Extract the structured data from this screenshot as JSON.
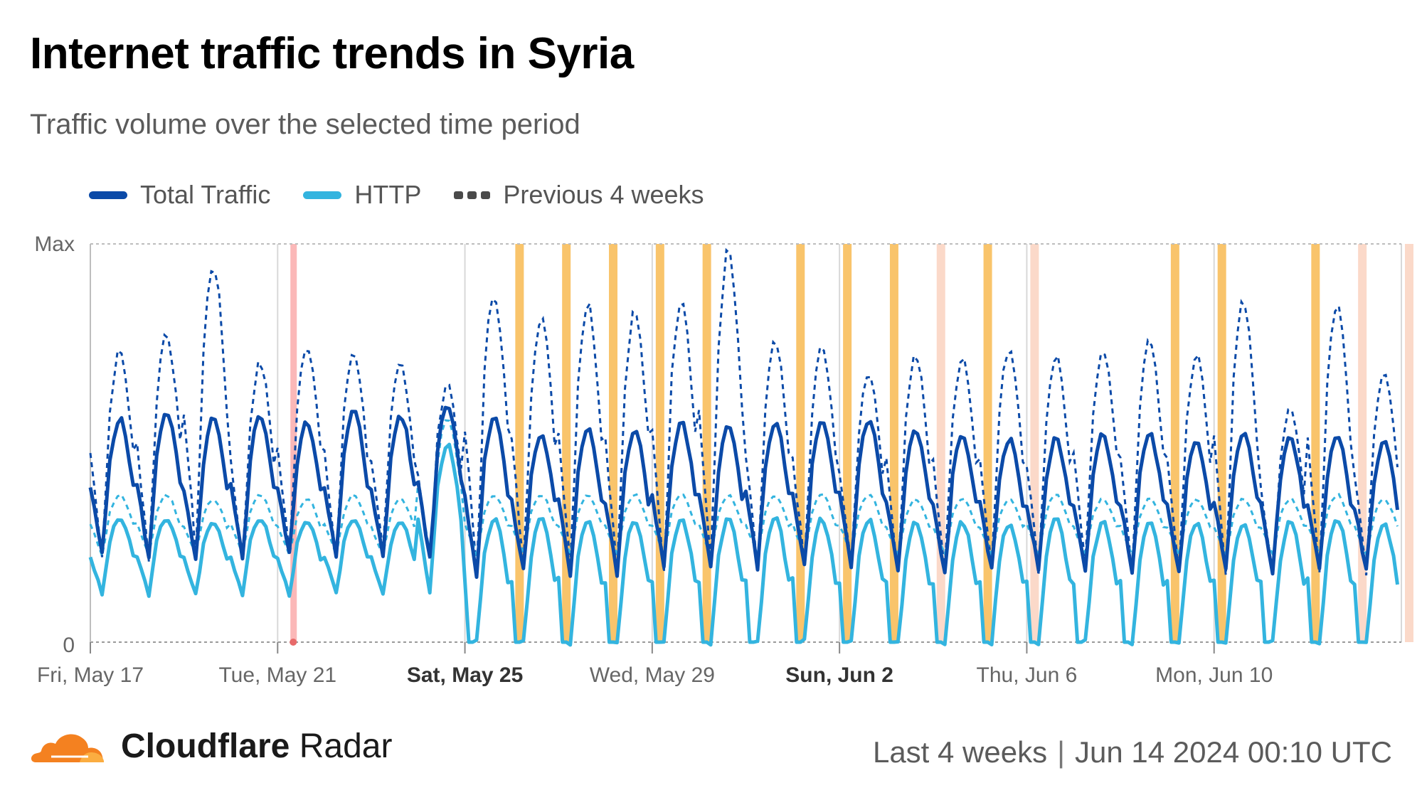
{
  "title": "Internet traffic trends in Syria",
  "subtitle": "Traffic volume over the selected time period",
  "legend": [
    {
      "label": "Total Traffic",
      "color": "#0b4aa8",
      "style": "solid"
    },
    {
      "label": "HTTP",
      "color": "#33b4df",
      "style": "solid"
    },
    {
      "label": "Previous 4 weeks",
      "color": "#4a4a4a",
      "style": "dashed"
    }
  ],
  "footer": {
    "brand_bold": "Cloudflare",
    "brand_regular": "Radar",
    "range": "Last 4 weeks",
    "timestamp": "Jun 14 2024 00:10 UTC"
  },
  "chart_data": {
    "type": "line",
    "y_ticks": [
      "0",
      "Max"
    ],
    "ylim": [
      0,
      1
    ],
    "xlim": [
      "2024-05-17T00:00",
      "2024-06-14T00:00"
    ],
    "x_ticks": [
      {
        "date": "2024-05-17",
        "label": "Fri, May 17",
        "bold": false
      },
      {
        "date": "2024-05-21",
        "label": "Tue, May 21",
        "bold": false
      },
      {
        "date": "2024-05-25",
        "label": "Sat, May 25",
        "bold": true
      },
      {
        "date": "2024-05-29",
        "label": "Wed, May 29",
        "bold": false
      },
      {
        "date": "2024-06-02",
        "label": "Sun, Jun 2",
        "bold": true
      },
      {
        "date": "2024-06-06",
        "label": "Thu, Jun 6",
        "bold": false
      },
      {
        "date": "2024-06-10",
        "label": "Mon, Jun 10",
        "bold": false
      }
    ],
    "colors": {
      "total": "#0b4aa8",
      "http": "#33b4df",
      "prev_total": "#0b4aa8",
      "prev_http": "#33b4df",
      "outage_band": "#f9c46b",
      "anomaly_band": "#fbd9c9",
      "event_band": "#fbb8b8"
    },
    "event_bands": [
      {
        "date": "2024-05-21T08:00",
        "kind": "event"
      }
    ],
    "outage_bands": [
      {
        "date": "2024-05-26T04:00",
        "kind": "outage"
      },
      {
        "date": "2024-05-27T04:00",
        "kind": "outage"
      },
      {
        "date": "2024-05-28T04:00",
        "kind": "outage"
      },
      {
        "date": "2024-05-29T04:00",
        "kind": "outage"
      },
      {
        "date": "2024-05-30T04:00",
        "kind": "outage"
      },
      {
        "date": "2024-06-01T04:00",
        "kind": "outage"
      },
      {
        "date": "2024-06-02T04:00",
        "kind": "outage"
      },
      {
        "date": "2024-06-03T04:00",
        "kind": "outage"
      },
      {
        "date": "2024-06-04T04:00",
        "kind": "anomaly"
      },
      {
        "date": "2024-06-05T04:00",
        "kind": "outage"
      },
      {
        "date": "2024-06-06T04:00",
        "kind": "anomaly"
      },
      {
        "date": "2024-06-09T04:00",
        "kind": "outage"
      },
      {
        "date": "2024-06-10T04:00",
        "kind": "outage"
      },
      {
        "date": "2024-06-12T04:00",
        "kind": "outage"
      },
      {
        "date": "2024-06-13T04:00",
        "kind": "anomaly"
      },
      {
        "date": "2024-06-14T04:00",
        "kind": "anomaly"
      }
    ],
    "series_hourly_profile_note": "Each day cycles low at night, peaks in afternoon/evening.",
    "series": [
      {
        "name": "Total Traffic",
        "daily_peak": [
          0.56,
          0.58,
          0.56,
          0.57,
          0.55,
          0.58,
          0.57,
          0.6,
          0.57,
          0.52,
          0.54,
          0.53,
          0.55,
          0.54,
          0.55,
          0.55,
          0.56,
          0.53,
          0.52,
          0.51,
          0.51,
          0.52,
          0.52,
          0.5,
          0.53,
          0.51,
          0.52,
          0.5
        ],
        "daily_min": [
          0.22,
          0.21,
          0.2,
          0.21,
          0.22,
          0.21,
          0.21,
          0.21,
          0.17,
          0.18,
          0.17,
          0.17,
          0.19,
          0.19,
          0.19,
          0.19,
          0.19,
          0.18,
          0.17,
          0.18,
          0.18,
          0.18,
          0.18,
          0.18,
          0.18,
          0.18,
          0.18,
          0.18
        ]
      },
      {
        "name": "HTTP",
        "daily_peak": [
          0.31,
          0.31,
          0.3,
          0.31,
          0.3,
          0.31,
          0.3,
          0.5,
          0.31,
          0.31,
          0.31,
          0.31,
          0.31,
          0.31,
          0.31,
          0.31,
          0.31,
          0.3,
          0.3,
          0.3,
          0.31,
          0.3,
          0.3,
          0.3,
          0.3,
          0.3,
          0.31,
          0.3
        ],
        "daily_min": [
          0.12,
          0.12,
          0.12,
          0.12,
          0.12,
          0.12,
          0.12,
          0.12,
          0.0,
          0.0,
          0.0,
          0.0,
          0.0,
          0.0,
          0.0,
          0.0,
          0.0,
          0.0,
          0.0,
          0.0,
          0.0,
          0.0,
          0.0,
          0.0,
          0.0,
          0.0,
          0.0,
          0.0
        ]
      },
      {
        "name": "Previous 4 weeks",
        "daily_peak": [
          0.73,
          0.78,
          0.95,
          0.7,
          0.75,
          0.73,
          0.7,
          0.65,
          0.88,
          0.82,
          0.85,
          0.83,
          0.87,
          0.98,
          0.75,
          0.74,
          0.68,
          0.72,
          0.72,
          0.74,
          0.72,
          0.74,
          0.76,
          0.72,
          0.85,
          0.58,
          0.85,
          0.68
        ],
        "daily_min": [
          0.22,
          0.21,
          0.22,
          0.21,
          0.22,
          0.21,
          0.22,
          0.2,
          0.18,
          0.19,
          0.2,
          0.19,
          0.18,
          0.19,
          0.18,
          0.19,
          0.19,
          0.18,
          0.18,
          0.19,
          0.18,
          0.19,
          0.18,
          0.18,
          0.18,
          0.18,
          0.18,
          0.18
        ]
      }
    ]
  }
}
